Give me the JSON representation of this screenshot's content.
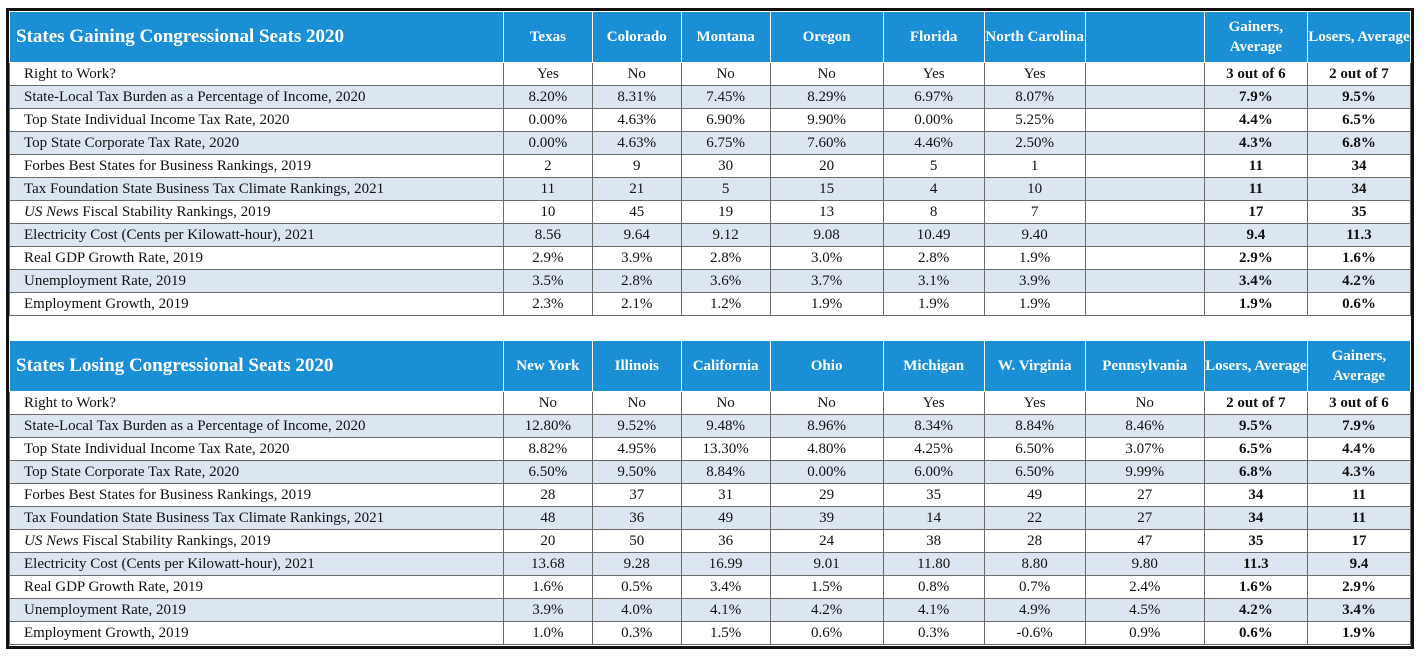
{
  "gaining": {
    "title": "States Gaining Congressional Seats 2020",
    "states": [
      "Texas",
      "Colorado",
      "Montana",
      "Oregon",
      "Florida",
      "North Carolina",
      ""
    ],
    "avg_headers": [
      "Gainers, Average",
      "Losers, Average"
    ],
    "rows": [
      {
        "label": "Right to Work?",
        "values": [
          "Yes",
          "No",
          "No",
          "No",
          "Yes",
          "Yes",
          ""
        ],
        "avgs": [
          "3 out of 6",
          "2 out of 7"
        ]
      },
      {
        "label": "State-Local Tax Burden as a Percentage of Income, 2020",
        "values": [
          "8.20%",
          "8.31%",
          "7.45%",
          "8.29%",
          "6.97%",
          "8.07%",
          ""
        ],
        "avgs": [
          "7.9%",
          "9.5%"
        ]
      },
      {
        "label": "Top State Individual Income Tax Rate, 2020",
        "values": [
          "0.00%",
          "4.63%",
          "6.90%",
          "9.90%",
          "0.00%",
          "5.25%",
          ""
        ],
        "avgs": [
          "4.4%",
          "6.5%"
        ]
      },
      {
        "label": "Top State Corporate Tax Rate, 2020",
        "values": [
          "0.00%",
          "4.63%",
          "6.75%",
          "7.60%",
          "4.46%",
          "2.50%",
          ""
        ],
        "avgs": [
          "4.3%",
          "6.8%"
        ]
      },
      {
        "label": "Forbes Best States for Business Rankings, 2019",
        "values": [
          "2",
          "9",
          "30",
          "20",
          "5",
          "1",
          ""
        ],
        "avgs": [
          "11",
          "34"
        ]
      },
      {
        "label": "Tax Foundation State Business Tax Climate Rankings, 2021",
        "values": [
          "11",
          "21",
          "5",
          "15",
          "4",
          "10",
          ""
        ],
        "avgs": [
          "11",
          "34"
        ]
      },
      {
        "label_italic": "US News",
        "label": " Fiscal Stability Rankings, 2019",
        "values": [
          "10",
          "45",
          "19",
          "13",
          "8",
          "7",
          ""
        ],
        "avgs": [
          "17",
          "35"
        ]
      },
      {
        "label": "Electricity Cost (Cents per Kilowatt-hour), 2021",
        "values": [
          "8.56",
          "9.64",
          "9.12",
          "9.08",
          "10.49",
          "9.40",
          ""
        ],
        "avgs": [
          "9.4",
          "11.3"
        ]
      },
      {
        "label": "Real GDP Growth Rate, 2019",
        "values": [
          "2.9%",
          "3.9%",
          "2.8%",
          "3.0%",
          "2.8%",
          "1.9%",
          ""
        ],
        "avgs": [
          "2.9%",
          "1.6%"
        ]
      },
      {
        "label": "Unemployment Rate, 2019",
        "values": [
          "3.5%",
          "2.8%",
          "3.6%",
          "3.7%",
          "3.1%",
          "3.9%",
          ""
        ],
        "avgs": [
          "3.4%",
          "4.2%"
        ]
      },
      {
        "label": "Employment Growth, 2019",
        "values": [
          "2.3%",
          "2.1%",
          "1.2%",
          "1.9%",
          "1.9%",
          "1.9%",
          ""
        ],
        "avgs": [
          "1.9%",
          "0.6%"
        ]
      }
    ]
  },
  "losing": {
    "title": "States Losing Congressional Seats 2020",
    "states": [
      "New York",
      "Illinois",
      "California",
      "Ohio",
      "Michigan",
      "W. Virginia",
      "Pennsylvania"
    ],
    "avg_headers": [
      "Losers, Average",
      "Gainers, Average"
    ],
    "rows": [
      {
        "label": "Right to Work?",
        "values": [
          "No",
          "No",
          "No",
          "No",
          "Yes",
          "Yes",
          "No"
        ],
        "avgs": [
          "2 out of 7",
          "3 out of 6"
        ]
      },
      {
        "label": "State-Local Tax Burden as a Percentage of Income, 2020",
        "values": [
          "12.80%",
          "9.52%",
          "9.48%",
          "8.96%",
          "8.34%",
          "8.84%",
          "8.46%"
        ],
        "avgs": [
          "9.5%",
          "7.9%"
        ]
      },
      {
        "label": "Top State Individual Income Tax Rate, 2020",
        "values": [
          "8.82%",
          "4.95%",
          "13.30%",
          "4.80%",
          "4.25%",
          "6.50%",
          "3.07%"
        ],
        "avgs": [
          "6.5%",
          "4.4%"
        ]
      },
      {
        "label": "Top State Corporate Tax Rate, 2020",
        "values": [
          "6.50%",
          "9.50%",
          "8.84%",
          "0.00%",
          "6.00%",
          "6.50%",
          "9.99%"
        ],
        "avgs": [
          "6.8%",
          "4.3%"
        ]
      },
      {
        "label": "Forbes Best States for Business Rankings, 2019",
        "values": [
          "28",
          "37",
          "31",
          "29",
          "35",
          "49",
          "27"
        ],
        "avgs": [
          "34",
          "11"
        ]
      },
      {
        "label": "Tax Foundation State Business Tax Climate Rankings, 2021",
        "values": [
          "48",
          "36",
          "49",
          "39",
          "14",
          "22",
          "27"
        ],
        "avgs": [
          "34",
          "11"
        ]
      },
      {
        "label_italic": "US News",
        "label": " Fiscal Stability Rankings, 2019",
        "values": [
          "20",
          "50",
          "36",
          "24",
          "38",
          "28",
          "47"
        ],
        "avgs": [
          "35",
          "17"
        ]
      },
      {
        "label": "Electricity Cost (Cents per Kilowatt-hour), 2021",
        "values": [
          "13.68",
          "9.28",
          "16.99",
          "9.01",
          "11.80",
          "8.80",
          "9.80"
        ],
        "avgs": [
          "11.3",
          "9.4"
        ]
      },
      {
        "label": "Real GDP Growth Rate, 2019",
        "values": [
          "1.6%",
          "0.5%",
          "3.4%",
          "1.5%",
          "0.8%",
          "0.7%",
          "2.4%"
        ],
        "avgs": [
          "1.6%",
          "2.9%"
        ]
      },
      {
        "label": "Unemployment Rate, 2019",
        "values": [
          "3.9%",
          "4.0%",
          "4.1%",
          "4.2%",
          "4.1%",
          "4.9%",
          "4.5%"
        ],
        "avgs": [
          "4.2%",
          "3.4%"
        ]
      },
      {
        "label": "Employment Growth, 2019",
        "values": [
          "1.0%",
          "0.3%",
          "1.5%",
          "0.6%",
          "0.3%",
          "-0.6%",
          "0.9%"
        ],
        "avgs": [
          "0.6%",
          "1.9%"
        ]
      }
    ]
  },
  "colors": {
    "header_blue": "#1b8fd6",
    "alt_row": "#dce6f1"
  }
}
